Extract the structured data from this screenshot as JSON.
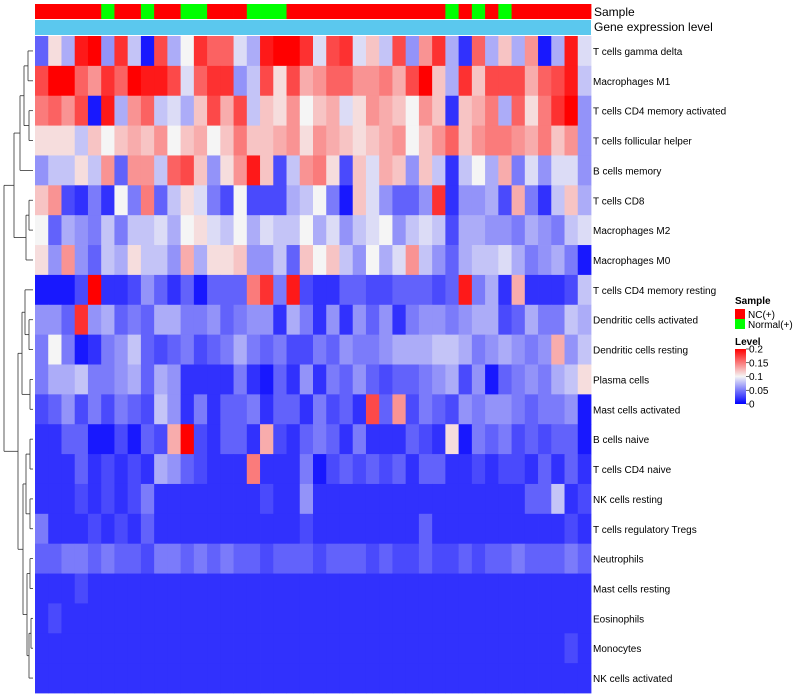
{
  "chart_data": {
    "type": "heatmap",
    "title": "",
    "annotation_tracks": [
      {
        "name": "Sample",
        "field": "sample_groups"
      },
      {
        "name": "Gene expression level",
        "field": "expression_track"
      }
    ],
    "sample_groups": [
      "NC(+)",
      "NC(+)",
      "NC(+)",
      "NC(+)",
      "NC(+)",
      "Normal(+)",
      "NC(+)",
      "NC(+)",
      "Normal(+)",
      "NC(+)",
      "NC(+)",
      "Normal(+)",
      "Normal(+)",
      "NC(+)",
      "NC(+)",
      "NC(+)",
      "Normal(+)",
      "Normal(+)",
      "Normal(+)",
      "NC(+)",
      "NC(+)",
      "NC(+)",
      "NC(+)",
      "NC(+)",
      "NC(+)",
      "NC(+)",
      "NC(+)",
      "NC(+)",
      "NC(+)",
      "NC(+)",
      "NC(+)",
      "Normal(+)",
      "NC(+)",
      "Normal(+)",
      "NC(+)",
      "Normal(+)",
      "NC(+)",
      "NC(+)",
      "NC(+)",
      "NC(+)",
      "NC(+)",
      "NC(+)"
    ],
    "expression_track_color": "#5bc8ee",
    "rows": [
      "T cells gamma delta",
      "Macrophages M1",
      "T cells CD4 memory activated",
      "T cells follicular helper",
      "B cells memory",
      "T cells CD8",
      "Macrophages M2",
      "Macrophages M0",
      "T cells CD4 memory resting",
      "Dendritic cells activated",
      "Dendritic cells resting",
      "Plasma cells",
      "Mast cells activated",
      "B cells naive",
      "T cells CD4 naive",
      "NK cells resting",
      "T cells regulatory  Tregs",
      "Neutrophils",
      "Mast cells resting",
      "Eosinophils",
      "Monocytes",
      "NK cells activated"
    ],
    "values": [
      [
        0.04,
        0.11,
        0.07,
        0.19,
        0.2,
        0.06,
        0.18,
        0.08,
        0.01,
        0.17,
        0.07,
        0.1,
        0.18,
        0.16,
        0.16,
        0.09,
        0.07,
        0.19,
        0.2,
        0.2,
        0.18,
        0.09,
        0.17,
        0.18,
        0.09,
        0.12,
        0.08,
        0.17,
        0.06,
        0.14,
        0.18,
        0.07,
        0.02,
        0.16,
        0.07,
        0.12,
        0.07,
        0.14,
        0.01,
        0.07,
        0.19,
        0.09
      ],
      [
        0.17,
        0.2,
        0.2,
        0.16,
        0.14,
        0.18,
        0.16,
        0.2,
        0.19,
        0.19,
        0.17,
        0.09,
        0.16,
        0.18,
        0.18,
        0.06,
        0.08,
        0.17,
        0.11,
        0.17,
        0.13,
        0.14,
        0.16,
        0.16,
        0.14,
        0.14,
        0.15,
        0.13,
        0.17,
        0.2,
        0.12,
        0.07,
        0.18,
        0.12,
        0.17,
        0.17,
        0.17,
        0.13,
        0.16,
        0.17,
        0.19,
        0.08
      ],
      [
        0.15,
        0.16,
        0.14,
        0.17,
        0.01,
        0.19,
        0.07,
        0.14,
        0.16,
        0.08,
        0.09,
        0.07,
        0.12,
        0.17,
        0.13,
        0.17,
        0.08,
        0.12,
        0.11,
        0.14,
        0.1,
        0.12,
        0.13,
        0.09,
        0.11,
        0.14,
        0.13,
        0.12,
        0.1,
        0.14,
        0.12,
        0.02,
        0.12,
        0.13,
        0.15,
        0.07,
        0.16,
        0.11,
        0.15,
        0.18,
        0.2,
        0.06
      ],
      [
        0.11,
        0.11,
        0.11,
        0.08,
        0.12,
        0.1,
        0.12,
        0.13,
        0.12,
        0.14,
        0.1,
        0.12,
        0.13,
        0.1,
        0.12,
        0.15,
        0.12,
        0.12,
        0.13,
        0.14,
        0.11,
        0.14,
        0.13,
        0.12,
        0.11,
        0.12,
        0.13,
        0.14,
        0.1,
        0.12,
        0.14,
        0.16,
        0.12,
        0.14,
        0.15,
        0.15,
        0.14,
        0.13,
        0.15,
        0.12,
        0.14,
        0.06
      ],
      [
        0.06,
        0.08,
        0.08,
        0.11,
        0.08,
        0.14,
        0.04,
        0.14,
        0.14,
        0.08,
        0.16,
        0.17,
        0.12,
        0.06,
        0.11,
        0.14,
        0.19,
        0.12,
        0.03,
        0.08,
        0.14,
        0.15,
        0.11,
        0.03,
        0.12,
        0.09,
        0.13,
        0.12,
        0.06,
        0.12,
        0.08,
        0.02,
        0.08,
        0.1,
        0.07,
        0.13,
        0.05,
        0.09,
        0.06,
        0.09,
        0.09,
        0.06
      ],
      [
        0.12,
        0.14,
        0.03,
        0.02,
        0.05,
        0.02,
        0.1,
        0.05,
        0.15,
        0.04,
        0.08,
        0.11,
        0.09,
        0.05,
        0.03,
        0.1,
        0.03,
        0.03,
        0.03,
        0.07,
        0.08,
        0.1,
        0.05,
        0.01,
        0.12,
        0.09,
        0.06,
        0.04,
        0.04,
        0.06,
        0.18,
        0.02,
        0.06,
        0.06,
        0.07,
        0.03,
        0.13,
        0.05,
        0.02,
        0.08,
        0.12,
        0.07
      ],
      [
        0.1,
        0.04,
        0.07,
        0.06,
        0.05,
        0.08,
        0.05,
        0.08,
        0.08,
        0.09,
        0.07,
        0.1,
        0.11,
        0.09,
        0.08,
        0.1,
        0.07,
        0.09,
        0.08,
        0.08,
        0.1,
        0.07,
        0.09,
        0.06,
        0.08,
        0.09,
        0.1,
        0.06,
        0.08,
        0.09,
        0.08,
        0.03,
        0.07,
        0.07,
        0.06,
        0.06,
        0.05,
        0.07,
        0.06,
        0.05,
        0.08,
        0.09
      ],
      [
        0.11,
        0.06,
        0.14,
        0.06,
        0.04,
        0.08,
        0.07,
        0.11,
        0.08,
        0.08,
        0.06,
        0.13,
        0.07,
        0.11,
        0.11,
        0.12,
        0.06,
        0.06,
        0.08,
        0.04,
        0.12,
        0.1,
        0.12,
        0.08,
        0.06,
        0.1,
        0.07,
        0.09,
        0.14,
        0.08,
        0.06,
        0.04,
        0.07,
        0.08,
        0.08,
        0.09,
        0.07,
        0.05,
        0.06,
        0.07,
        0.05,
        0.01
      ],
      [
        0.01,
        0.01,
        0.01,
        0.03,
        0.2,
        0.02,
        0.02,
        0.03,
        0.06,
        0.04,
        0.02,
        0.04,
        0.01,
        0.04,
        0.04,
        0.04,
        0.15,
        0.18,
        0.05,
        0.19,
        0.03,
        0.02,
        0.02,
        0.04,
        0.04,
        0.03,
        0.03,
        0.04,
        0.04,
        0.04,
        0.03,
        0.04,
        0.19,
        0.05,
        0.07,
        0.02,
        0.13,
        0.02,
        0.02,
        0.02,
        0.03,
        0.08
      ],
      [
        0.06,
        0.06,
        0.04,
        0.18,
        0.06,
        0.07,
        0.04,
        0.05,
        0.04,
        0.07,
        0.07,
        0.05,
        0.05,
        0.06,
        0.04,
        0.05,
        0.06,
        0.06,
        0.02,
        0.07,
        0.05,
        0.02,
        0.06,
        0.02,
        0.06,
        0.04,
        0.06,
        0.02,
        0.05,
        0.06,
        0.06,
        0.05,
        0.06,
        0.07,
        0.07,
        0.03,
        0.04,
        0.07,
        0.05,
        0.05,
        0.08,
        0.07
      ],
      [
        0.05,
        0.1,
        0.05,
        0.01,
        0.02,
        0.05,
        0.06,
        0.08,
        0.04,
        0.03,
        0.04,
        0.05,
        0.03,
        0.04,
        0.05,
        0.07,
        0.05,
        0.04,
        0.05,
        0.03,
        0.03,
        0.05,
        0.04,
        0.06,
        0.05,
        0.05,
        0.06,
        0.07,
        0.07,
        0.07,
        0.08,
        0.08,
        0.07,
        0.05,
        0.06,
        0.07,
        0.06,
        0.05,
        0.06,
        0.13,
        0.06,
        0.08
      ],
      [
        0.05,
        0.07,
        0.07,
        0.08,
        0.05,
        0.05,
        0.06,
        0.07,
        0.04,
        0.07,
        0.06,
        0.02,
        0.02,
        0.02,
        0.02,
        0.05,
        0.02,
        0.01,
        0.04,
        0.02,
        0.06,
        0.02,
        0.05,
        0.04,
        0.06,
        0.04,
        0.03,
        0.04,
        0.04,
        0.05,
        0.06,
        0.07,
        0.03,
        0.06,
        0.01,
        0.04,
        0.05,
        0.06,
        0.05,
        0.07,
        0.08,
        0.11
      ],
      [
        0.03,
        0.04,
        0.06,
        0.03,
        0.05,
        0.03,
        0.05,
        0.04,
        0.03,
        0.08,
        0.06,
        0.02,
        0.05,
        0.02,
        0.04,
        0.04,
        0.05,
        0.02,
        0.04,
        0.04,
        0.02,
        0.05,
        0.03,
        0.04,
        0.02,
        0.17,
        0.04,
        0.14,
        0.03,
        0.05,
        0.04,
        0.03,
        0.06,
        0.05,
        0.06,
        0.06,
        0.05,
        0.04,
        0.05,
        0.05,
        0.06,
        0.01
      ],
      [
        0.02,
        0.02,
        0.04,
        0.04,
        0.01,
        0.01,
        0.03,
        0.01,
        0.04,
        0.03,
        0.13,
        0.2,
        0.03,
        0.02,
        0.04,
        0.04,
        0.02,
        0.13,
        0.03,
        0.02,
        0.04,
        0.05,
        0.04,
        0.02,
        0.05,
        0.02,
        0.02,
        0.02,
        0.04,
        0.03,
        0.02,
        0.11,
        0.01,
        0.05,
        0.04,
        0.05,
        0.03,
        0.04,
        0.03,
        0.04,
        0.04,
        0.01
      ],
      [
        0.02,
        0.02,
        0.02,
        0.04,
        0.02,
        0.03,
        0.02,
        0.03,
        0.02,
        0.07,
        0.06,
        0.04,
        0.03,
        0.02,
        0.02,
        0.02,
        0.15,
        0.02,
        0.02,
        0.02,
        0.05,
        0.01,
        0.03,
        0.04,
        0.03,
        0.04,
        0.03,
        0.04,
        0.02,
        0.04,
        0.04,
        0.02,
        0.02,
        0.03,
        0.02,
        0.03,
        0.03,
        0.02,
        0.04,
        0.02,
        0.04,
        0.02
      ],
      [
        0.02,
        0.02,
        0.02,
        0.03,
        0.02,
        0.03,
        0.02,
        0.03,
        0.05,
        0.02,
        0.02,
        0.02,
        0.02,
        0.02,
        0.02,
        0.02,
        0.02,
        0.03,
        0.02,
        0.02,
        0.06,
        0.02,
        0.02,
        0.02,
        0.02,
        0.02,
        0.02,
        0.02,
        0.02,
        0.02,
        0.02,
        0.02,
        0.02,
        0.02,
        0.02,
        0.02,
        0.02,
        0.04,
        0.04,
        0.08,
        0.02,
        0.03
      ],
      [
        0.05,
        0.02,
        0.02,
        0.02,
        0.03,
        0.02,
        0.03,
        0.02,
        0.04,
        0.02,
        0.02,
        0.02,
        0.02,
        0.02,
        0.02,
        0.02,
        0.02,
        0.02,
        0.02,
        0.02,
        0.03,
        0.02,
        0.02,
        0.02,
        0.02,
        0.02,
        0.02,
        0.02,
        0.02,
        0.04,
        0.02,
        0.02,
        0.02,
        0.02,
        0.02,
        0.02,
        0.02,
        0.02,
        0.02,
        0.02,
        0.03,
        0.02
      ],
      [
        0.04,
        0.04,
        0.05,
        0.05,
        0.04,
        0.05,
        0.04,
        0.04,
        0.03,
        0.05,
        0.05,
        0.04,
        0.05,
        0.04,
        0.05,
        0.04,
        0.04,
        0.03,
        0.04,
        0.04,
        0.04,
        0.03,
        0.04,
        0.04,
        0.04,
        0.03,
        0.04,
        0.03,
        0.03,
        0.04,
        0.03,
        0.03,
        0.04,
        0.03,
        0.04,
        0.04,
        0.05,
        0.04,
        0.04,
        0.04,
        0.05,
        0.04
      ],
      [
        0.02,
        0.02,
        0.02,
        0.03,
        0.02,
        0.02,
        0.02,
        0.02,
        0.02,
        0.02,
        0.02,
        0.02,
        0.02,
        0.02,
        0.02,
        0.02,
        0.02,
        0.02,
        0.02,
        0.02,
        0.02,
        0.02,
        0.02,
        0.02,
        0.02,
        0.02,
        0.02,
        0.02,
        0.02,
        0.02,
        0.02,
        0.02,
        0.02,
        0.02,
        0.02,
        0.02,
        0.02,
        0.02,
        0.02,
        0.02,
        0.02,
        0.02
      ],
      [
        0.02,
        0.03,
        0.02,
        0.02,
        0.02,
        0.02,
        0.02,
        0.02,
        0.02,
        0.02,
        0.02,
        0.02,
        0.02,
        0.02,
        0.02,
        0.02,
        0.02,
        0.02,
        0.02,
        0.02,
        0.02,
        0.02,
        0.02,
        0.02,
        0.02,
        0.02,
        0.02,
        0.02,
        0.02,
        0.02,
        0.02,
        0.02,
        0.02,
        0.02,
        0.02,
        0.02,
        0.02,
        0.02,
        0.02,
        0.02,
        0.02,
        0.02
      ],
      [
        0.02,
        0.02,
        0.02,
        0.02,
        0.02,
        0.02,
        0.02,
        0.02,
        0.02,
        0.02,
        0.02,
        0.02,
        0.02,
        0.02,
        0.02,
        0.02,
        0.02,
        0.02,
        0.02,
        0.02,
        0.02,
        0.02,
        0.02,
        0.02,
        0.02,
        0.02,
        0.02,
        0.02,
        0.02,
        0.02,
        0.02,
        0.02,
        0.02,
        0.02,
        0.02,
        0.02,
        0.02,
        0.02,
        0.02,
        0.02,
        0.03,
        0.02
      ],
      [
        0.02,
        0.02,
        0.02,
        0.02,
        0.02,
        0.02,
        0.02,
        0.02,
        0.02,
        0.02,
        0.02,
        0.02,
        0.02,
        0.02,
        0.02,
        0.02,
        0.02,
        0.02,
        0.02,
        0.02,
        0.02,
        0.02,
        0.02,
        0.02,
        0.02,
        0.02,
        0.02,
        0.02,
        0.02,
        0.02,
        0.02,
        0.02,
        0.02,
        0.02,
        0.02,
        0.02,
        0.02,
        0.02,
        0.02,
        0.02,
        0.02,
        0.02
      ]
    ],
    "color_scale": {
      "low": "#0000ff",
      "mid": "#f5f5f5",
      "high": "#ff0000",
      "min": 0,
      "mid_value": 0.1,
      "max": 0.2
    },
    "legend": {
      "sample_title": "Sample",
      "sample_entries": [
        {
          "label": "NC(+)",
          "color": "#ff0000"
        },
        {
          "label": "Normal(+)",
          "color": "#00ff00"
        }
      ],
      "level_title": "Level",
      "level_ticks": [
        "0.2",
        "0.15",
        "0.1",
        "0.05",
        "0"
      ],
      "level_tick_values": [
        0.2,
        0.15,
        0.1,
        0.05,
        0
      ]
    },
    "row_dendrogram": true
  }
}
